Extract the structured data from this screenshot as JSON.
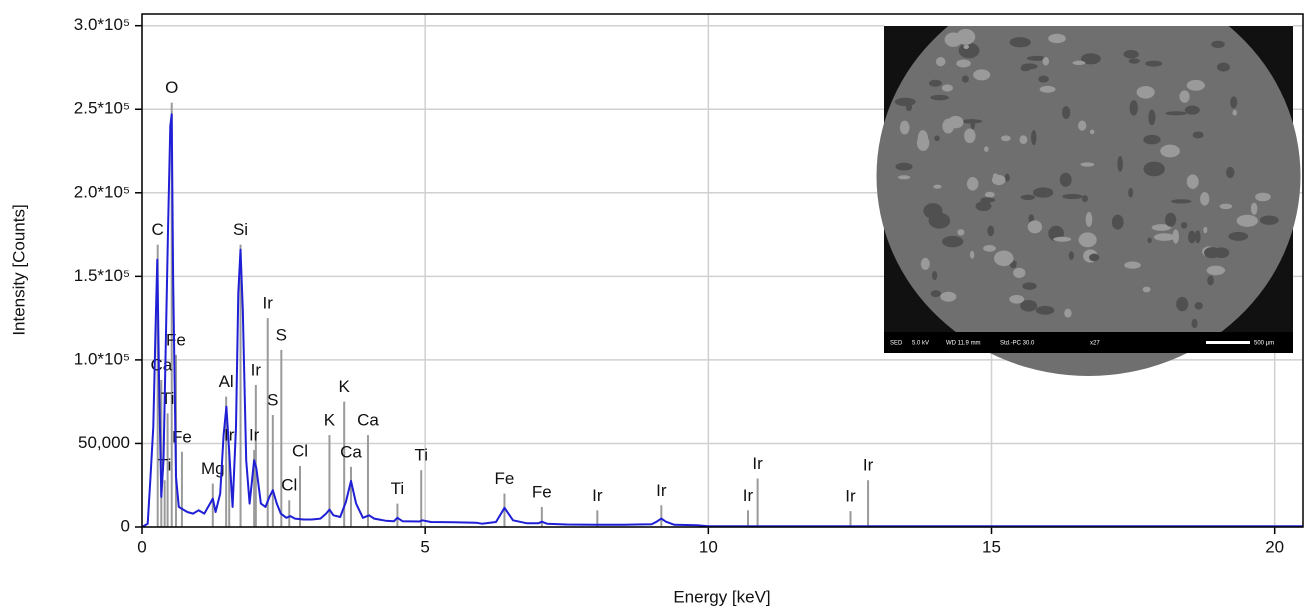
{
  "chart_data": {
    "type": "line",
    "x_label": "Energy [keV]",
    "y_label": "Intensity [Counts]",
    "xlim": [
      0,
      20.5
    ],
    "ylim": [
      0,
      307000
    ],
    "xticks": [
      0,
      5,
      10,
      15,
      20
    ],
    "yticks": [
      0,
      {
        "value": 50000,
        "label": "50,000"
      },
      {
        "value": 100000,
        "label": "1.0*10⁵"
      },
      {
        "value": 150000,
        "label": "1.5*10⁵"
      },
      {
        "value": 200000,
        "label": "2.0*10⁵"
      },
      {
        "value": 250000,
        "label": "2.5*10⁵"
      },
      {
        "value": 300000,
        "label": "3.0*10⁵"
      }
    ],
    "grid": true,
    "series": [
      {
        "color": "#1f1fd6",
        "x": [
          0,
          0.1,
          0.15,
          0.2,
          0.24,
          0.27,
          0.3,
          0.34,
          0.38,
          0.42,
          0.46,
          0.5,
          0.525,
          0.55,
          0.6,
          0.65,
          0.7,
          0.8,
          0.9,
          1.0,
          1.1,
          1.2,
          1.25,
          1.3,
          1.38,
          1.44,
          1.49,
          1.54,
          1.6,
          1.66,
          1.7,
          1.74,
          1.78,
          1.84,
          1.9,
          1.95,
          1.98,
          2.02,
          2.1,
          2.18,
          2.25,
          2.31,
          2.38,
          2.45,
          2.55,
          2.62,
          2.7,
          2.85,
          3.0,
          3.15,
          3.25,
          3.31,
          3.38,
          3.5,
          3.6,
          3.69,
          3.78,
          3.9,
          4.01,
          4.1,
          4.3,
          4.45,
          4.51,
          4.6,
          4.9,
          4.95,
          5.1,
          5.5,
          5.9,
          6.0,
          6.25,
          6.4,
          6.55,
          6.8,
          7.0,
          7.06,
          7.15,
          7.5,
          8.0,
          8.5,
          9.0,
          9.1,
          9.17,
          9.25,
          9.4,
          9.8,
          10.0,
          10.3,
          11,
          12,
          13,
          14,
          15,
          16,
          17,
          18,
          19,
          20,
          20.5
        ],
        "values": [
          0,
          2000,
          30000,
          60000,
          120000,
          160000,
          90000,
          18000,
          40000,
          110000,
          180000,
          240000,
          247000,
          150000,
          30000,
          12000,
          11000,
          9000,
          8000,
          10000,
          8000,
          14000,
          17000,
          9000,
          20000,
          55000,
          72000,
          45000,
          12000,
          60000,
          140000,
          166000,
          130000,
          40000,
          14000,
          30000,
          40000,
          35000,
          14000,
          12000,
          18000,
          22000,
          14000,
          8000,
          5500,
          6500,
          5000,
          4500,
          4500,
          5000,
          8000,
          10500,
          7000,
          6000,
          15000,
          27500,
          14000,
          5500,
          7000,
          5000,
          3800,
          3500,
          5500,
          3500,
          3300,
          4000,
          3000,
          2900,
          2600,
          2000,
          3000,
          11500,
          4000,
          2200,
          2200,
          3200,
          2000,
          1500,
          1400,
          1400,
          1600,
          3500,
          5000,
          3200,
          1300,
          1000,
          500,
          500,
          500,
          450,
          450,
          400,
          400,
          400,
          400,
          400,
          400,
          400,
          400
        ]
      }
    ],
    "markers": [
      {
        "label": "C",
        "x": 0.277,
        "top": 169000
      },
      {
        "label": "O",
        "x": 0.525,
        "top": 254000
      },
      {
        "label": "Ca",
        "x": 0.341,
        "top": 88000
      },
      {
        "label": "Ti",
        "x": 0.452,
        "top": 68000
      },
      {
        "label": "Ti",
        "x": 0.4,
        "top": 28000
      },
      {
        "label": "Fe",
        "x": 0.6,
        "top": 103000
      },
      {
        "label": "Fe",
        "x": 0.705,
        "top": 45000
      },
      {
        "label": "Mg",
        "x": 1.25,
        "top": 26000
      },
      {
        "label": "Al",
        "x": 1.486,
        "top": 78000
      },
      {
        "label": "Ir",
        "x": 1.54,
        "top": 46000
      },
      {
        "label": "Si",
        "x": 1.74,
        "top": 169000
      },
      {
        "label": "Ir",
        "x": 2.01,
        "top": 85000
      },
      {
        "label": "Ir",
        "x": 1.98,
        "top": 46000
      },
      {
        "label": "Ir",
        "x": 2.22,
        "top": 125000
      },
      {
        "label": "S",
        "x": 2.46,
        "top": 106000
      },
      {
        "label": "S",
        "x": 2.31,
        "top": 67000
      },
      {
        "label": "Cl",
        "x": 2.79,
        "top": 36500
      },
      {
        "label": "Cl",
        "x": 2.6,
        "top": 16000
      },
      {
        "label": "K",
        "x": 3.57,
        "top": 75000
      },
      {
        "label": "K",
        "x": 3.31,
        "top": 55000
      },
      {
        "label": "Ca",
        "x": 3.99,
        "top": 55000
      },
      {
        "label": "Ca",
        "x": 3.69,
        "top": 36000
      },
      {
        "label": "Ti",
        "x": 4.93,
        "top": 34000
      },
      {
        "label": "Ti",
        "x": 4.51,
        "top": 14000
      },
      {
        "label": "Fe",
        "x": 6.4,
        "top": 20000
      },
      {
        "label": "Fe",
        "x": 7.06,
        "top": 12000
      },
      {
        "label": "Ir",
        "x": 8.04,
        "top": 10000
      },
      {
        "label": "Ir",
        "x": 9.17,
        "top": 13000
      },
      {
        "label": "Ir",
        "x": 10.7,
        "top": 10000
      },
      {
        "label": "Ir",
        "x": 10.87,
        "top": 29000
      },
      {
        "label": "Ir",
        "x": 12.51,
        "top": 9500
      },
      {
        "label": "Ir",
        "x": 12.82,
        "top": 28000
      }
    ],
    "inset_caption": [
      "SED",
      "5.0 kV",
      "WD 11.9 mm",
      "Std.-PC 30.0",
      "x27",
      "500 µm"
    ]
  }
}
